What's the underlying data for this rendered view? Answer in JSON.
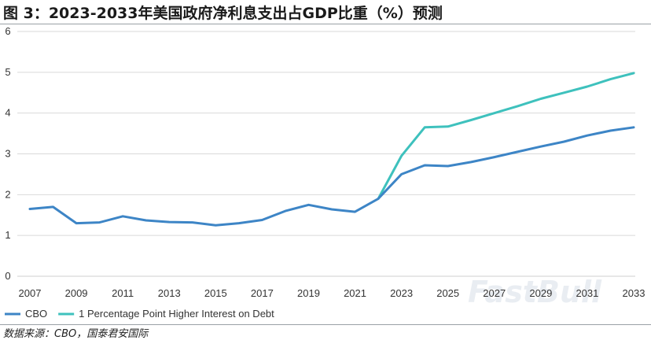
{
  "header": {
    "title": "图 3：2023-2033年美国政府净利息支出占GDP比重（%）预测"
  },
  "footer": {
    "source": "数据来源：CBO，国泰君安国际"
  },
  "chart_data": {
    "type": "line",
    "x": [
      2007,
      2008,
      2009,
      2010,
      2011,
      2012,
      2013,
      2014,
      2015,
      2016,
      2017,
      2018,
      2019,
      2020,
      2021,
      2022,
      2023,
      2024,
      2025,
      2026,
      2027,
      2028,
      2029,
      2030,
      2031,
      2032,
      2033
    ],
    "series": [
      {
        "name": "CBO",
        "color": "#3d85c6",
        "values": [
          1.65,
          1.7,
          1.3,
          1.32,
          1.47,
          1.37,
          1.33,
          1.32,
          1.25,
          1.3,
          1.38,
          1.6,
          1.75,
          1.64,
          1.58,
          1.9,
          2.5,
          2.72,
          2.7,
          2.8,
          2.92,
          3.05,
          3.18,
          3.3,
          3.45,
          3.57,
          3.65
        ]
      },
      {
        "name": "1 Percentage Point Higher Interest on Debt",
        "color": "#3ec1bd",
        "values": [
          null,
          null,
          null,
          null,
          null,
          null,
          null,
          null,
          null,
          null,
          null,
          null,
          null,
          null,
          null,
          1.9,
          2.95,
          3.65,
          3.67,
          3.83,
          4.0,
          4.17,
          4.35,
          4.5,
          4.65,
          4.83,
          4.98
        ]
      }
    ],
    "x_ticks": [
      "2007",
      "2009",
      "2011",
      "2013",
      "2015",
      "2017",
      "2019",
      "2021",
      "2023",
      "2025",
      "2027",
      "2029",
      "2031",
      "2033"
    ],
    "y_ticks": [
      "0",
      "1",
      "2",
      "3",
      "4",
      "5",
      "6"
    ],
    "xlim": [
      2007,
      2033
    ],
    "ylim": [
      0,
      6
    ],
    "grid": "horizontal",
    "legend_position": "bottom-left",
    "watermark": "FastBull"
  }
}
